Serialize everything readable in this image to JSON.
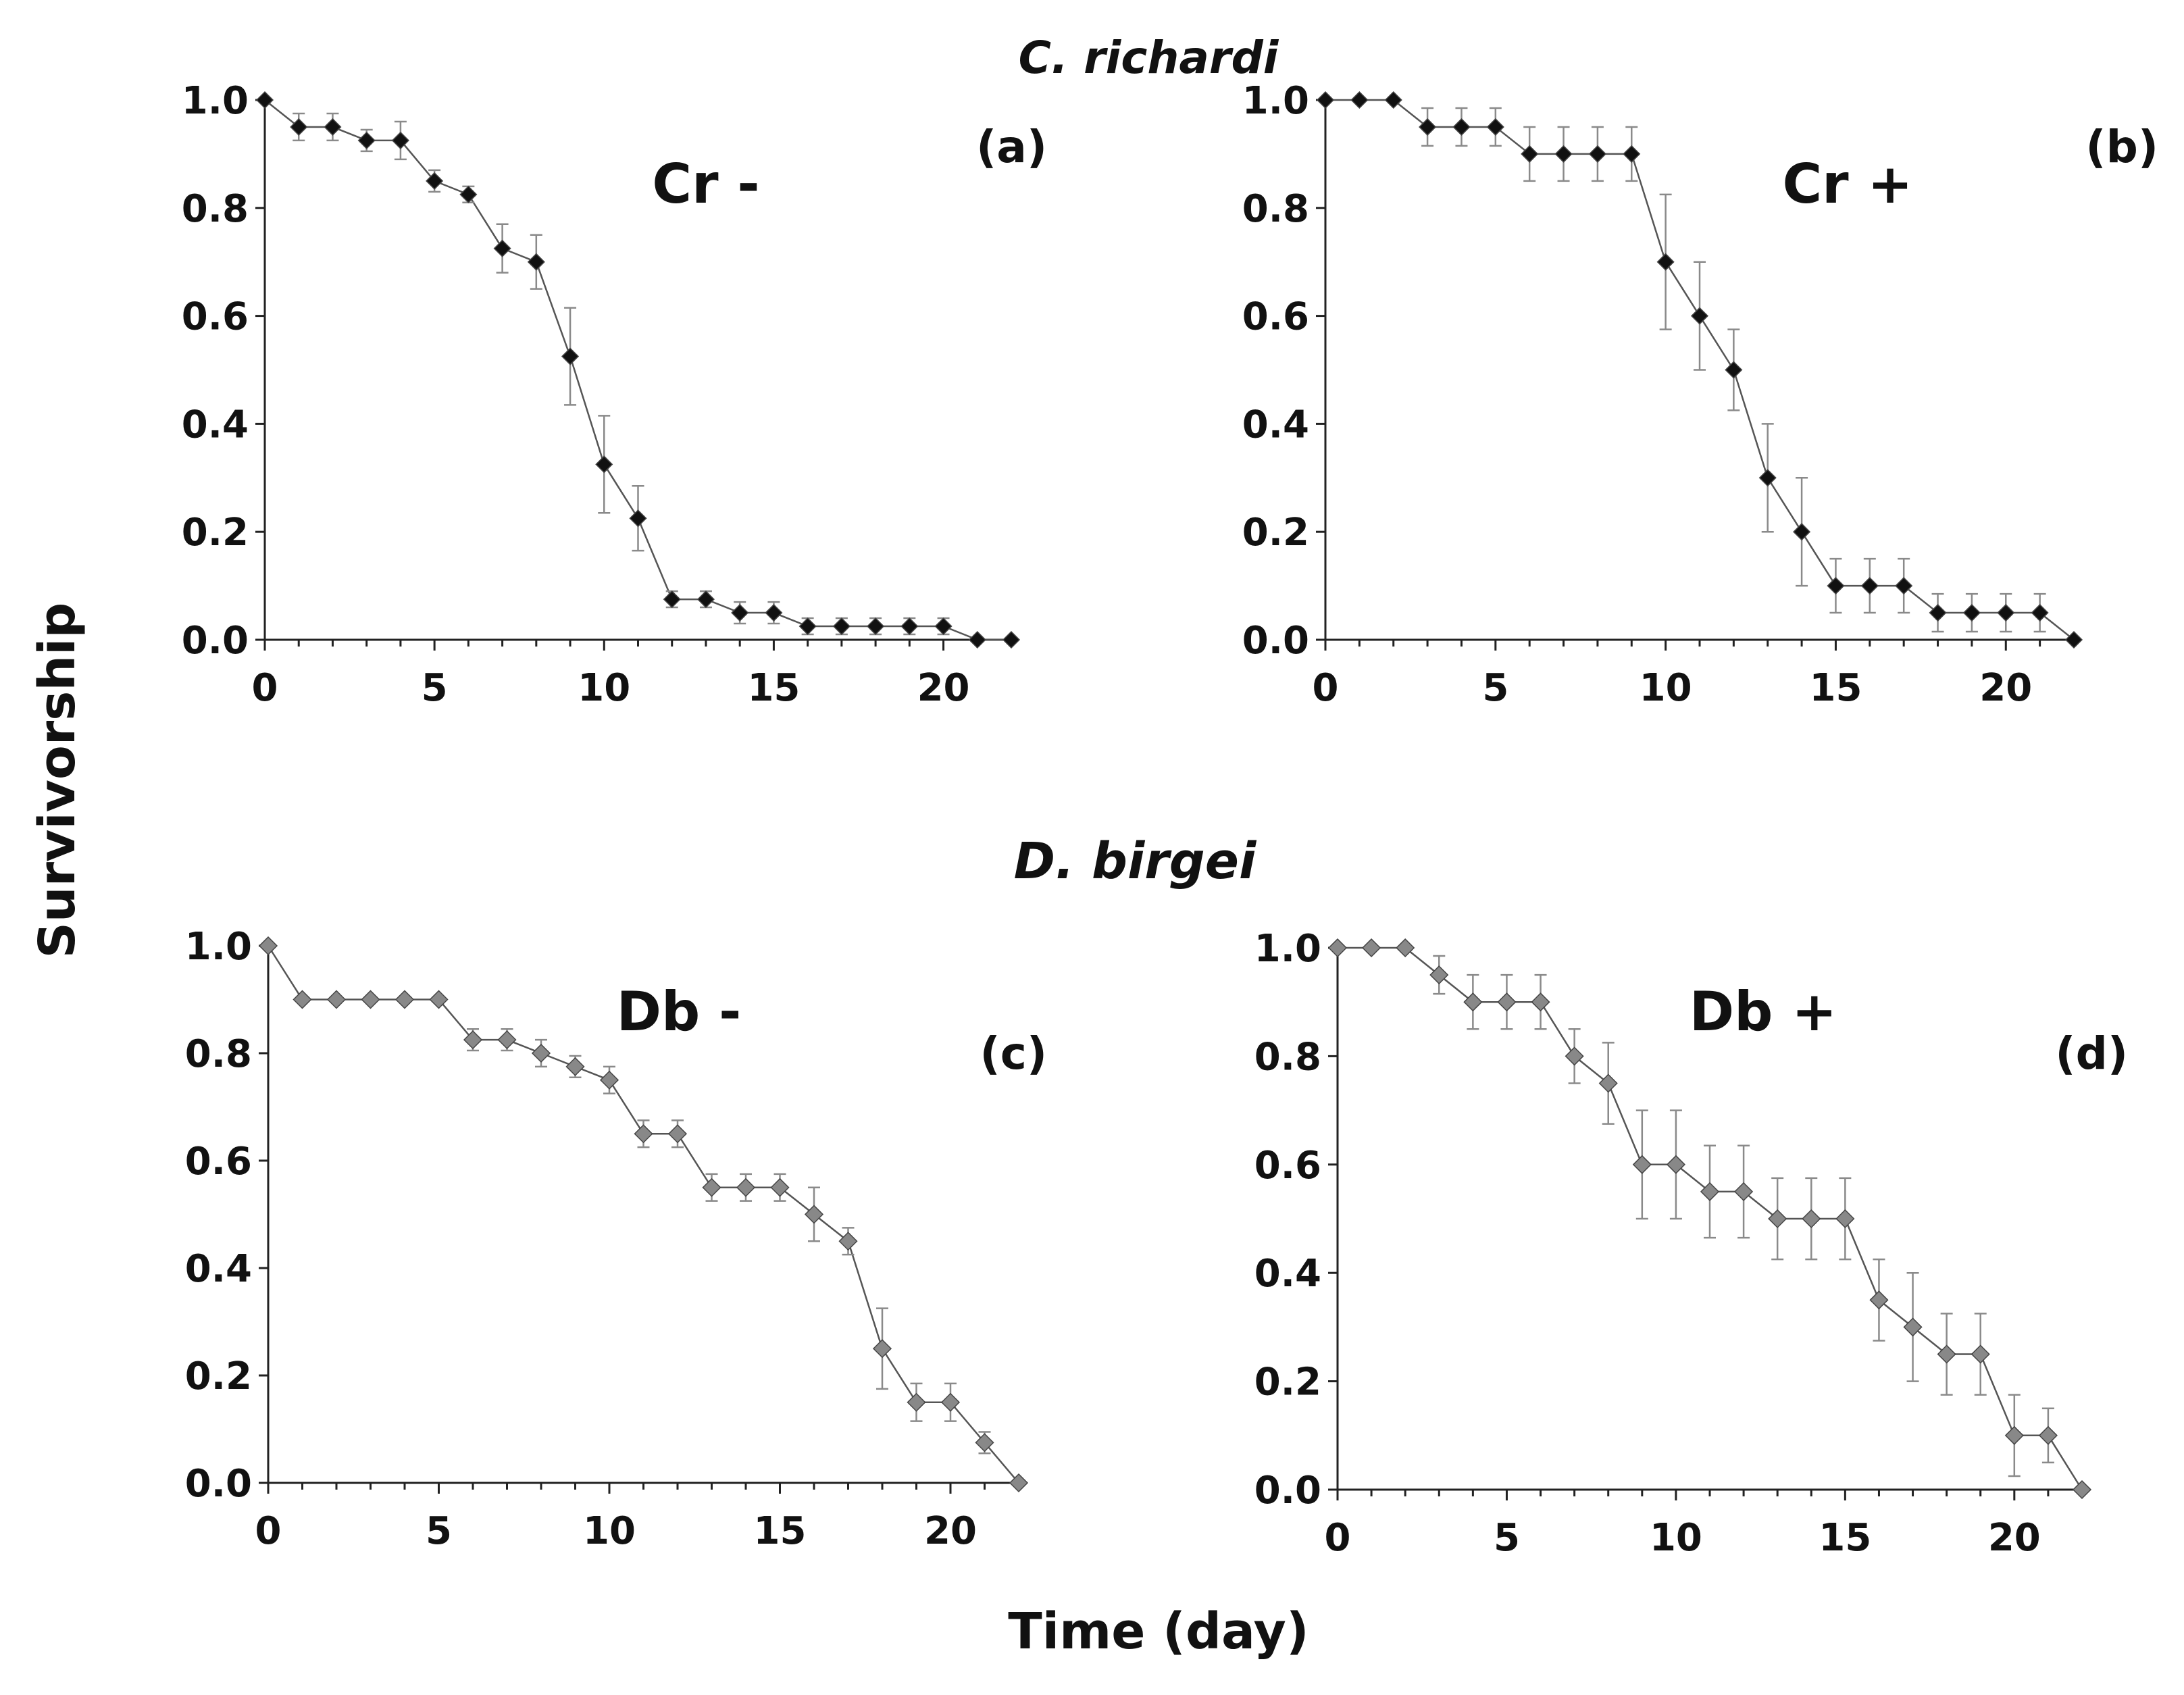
{
  "figure": {
    "ylabel": "Survivorship",
    "xlabel": "Time (day)",
    "species_labels": [
      "C. richardi",
      "D. birgei"
    ],
    "colors": {
      "black_marker": "#111111",
      "gray_marker": "#888888",
      "line": "#555555",
      "errorbar": "#8a8a8a",
      "axis": "#222222"
    }
  },
  "chart_data": [
    {
      "type": "line",
      "panel_letter": "(a)",
      "treatment": "Cr -",
      "species": "C. richardi",
      "marker": "black",
      "x": [
        0,
        1,
        2,
        3,
        4,
        5,
        6,
        7,
        8,
        9,
        10,
        11,
        12,
        13,
        14,
        15,
        16,
        17,
        18,
        19,
        20,
        21,
        22
      ],
      "values": [
        1.0,
        0.95,
        0.95,
        0.925,
        0.925,
        0.85,
        0.825,
        0.725,
        0.7,
        0.525,
        0.325,
        0.225,
        0.075,
        0.075,
        0.05,
        0.05,
        0.025,
        0.025,
        0.025,
        0.025,
        0.025,
        0.0,
        0.0
      ],
      "errors": [
        0,
        0.025,
        0.025,
        0.02,
        0.035,
        0.02,
        0.015,
        0.045,
        0.05,
        0.09,
        0.09,
        0.06,
        0.015,
        0.015,
        0.02,
        0.02,
        0.015,
        0.015,
        0.015,
        0.015,
        0.015,
        0,
        0
      ],
      "xlim": [
        0,
        22
      ],
      "ylim": [
        0,
        1.0
      ],
      "xticks": [
        "0",
        "5",
        "10",
        "15",
        "20"
      ],
      "yticks": [
        "0.0",
        "0.2",
        "0.4",
        "0.6",
        "0.8",
        "1.0"
      ]
    },
    {
      "type": "line",
      "panel_letter": "(b)",
      "treatment": "Cr +",
      "species": "C. richardi",
      "marker": "black",
      "x": [
        0,
        1,
        2,
        3,
        4,
        5,
        6,
        7,
        8,
        9,
        10,
        11,
        12,
        13,
        14,
        15,
        16,
        17,
        18,
        19,
        20,
        21,
        22
      ],
      "values": [
        1.0,
        1.0,
        1.0,
        0.95,
        0.95,
        0.95,
        0.9,
        0.9,
        0.9,
        0.9,
        0.7,
        0.6,
        0.5,
        0.3,
        0.2,
        0.1,
        0.1,
        0.1,
        0.05,
        0.05,
        0.05,
        0.05,
        0.0
      ],
      "errors": [
        0,
        0,
        0,
        0.035,
        0.035,
        0.035,
        0.05,
        0.05,
        0.05,
        0.05,
        0.125,
        0.1,
        0.075,
        0.1,
        0.1,
        0.05,
        0.05,
        0.05,
        0.035,
        0.035,
        0.035,
        0.035,
        0
      ],
      "xlim": [
        0,
        22
      ],
      "ylim": [
        0,
        1.0
      ],
      "xticks": [
        "0",
        "5",
        "10",
        "15",
        "20"
      ],
      "yticks": [
        "0.0",
        "0.2",
        "0.4",
        "0.6",
        "0.8",
        "1.0"
      ]
    },
    {
      "type": "line",
      "panel_letter": "(c)",
      "treatment": "Db -",
      "species": "D. birgei",
      "marker": "gray",
      "x": [
        0,
        1,
        2,
        3,
        4,
        5,
        6,
        7,
        8,
        9,
        10,
        11,
        12,
        13,
        14,
        15,
        16,
        17,
        18,
        19,
        20,
        21,
        22
      ],
      "values": [
        1.0,
        0.9,
        0.9,
        0.9,
        0.9,
        0.9,
        0.825,
        0.825,
        0.8,
        0.775,
        0.75,
        0.65,
        0.65,
        0.55,
        0.55,
        0.55,
        0.5,
        0.45,
        0.25,
        0.15,
        0.15,
        0.075,
        0.0
      ],
      "errors": [
        0,
        0,
        0,
        0,
        0,
        0,
        0.02,
        0.02,
        0.025,
        0.02,
        0.025,
        0.025,
        0.025,
        0.025,
        0.025,
        0.025,
        0.05,
        0.025,
        0.075,
        0.035,
        0.035,
        0.02,
        0
      ],
      "xlim": [
        0,
        22
      ],
      "ylim": [
        0,
        1.0
      ],
      "xticks": [
        "0",
        "5",
        "10",
        "15",
        "20"
      ],
      "yticks": [
        "0.0",
        "0.2",
        "0.4",
        "0.6",
        "0.8",
        "1.0"
      ]
    },
    {
      "type": "line",
      "panel_letter": "(d)",
      "treatment": "Db +",
      "species": "D. birgei",
      "marker": "gray",
      "x": [
        0,
        1,
        2,
        3,
        4,
        5,
        6,
        7,
        8,
        9,
        10,
        11,
        12,
        13,
        14,
        15,
        16,
        17,
        18,
        19,
        20,
        21,
        22
      ],
      "values": [
        1.0,
        1.0,
        1.0,
        0.95,
        0.9,
        0.9,
        0.9,
        0.8,
        0.75,
        0.6,
        0.6,
        0.55,
        0.55,
        0.5,
        0.5,
        0.5,
        0.35,
        0.3,
        0.25,
        0.25,
        0.1,
        0.1,
        0.0
      ],
      "errors": [
        0,
        0,
        0,
        0.035,
        0.05,
        0.05,
        0.05,
        0.05,
        0.075,
        0.1,
        0.1,
        0.085,
        0.085,
        0.075,
        0.075,
        0.075,
        0.075,
        0.1,
        0.075,
        0.075,
        0.075,
        0.05,
        0
      ],
      "xlim": [
        0,
        22
      ],
      "ylim": [
        0,
        1.0
      ],
      "xticks": [
        "0",
        "5",
        "10",
        "15",
        "20"
      ],
      "yticks": [
        "0.0",
        "0.2",
        "0.4",
        "0.6",
        "0.8",
        "1.0"
      ]
    }
  ]
}
